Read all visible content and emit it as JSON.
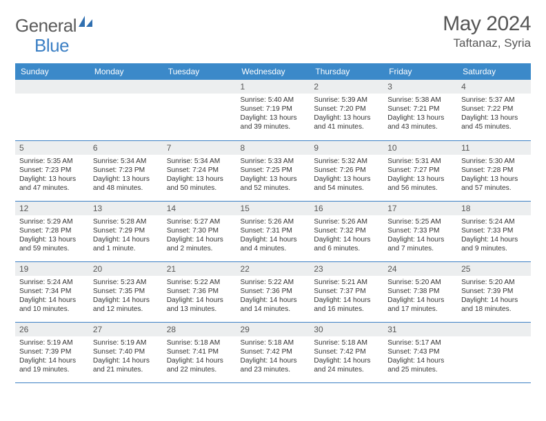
{
  "logo": {
    "text1": "General",
    "text2": "Blue"
  },
  "title": "May 2024",
  "location": "Taftanaz, Syria",
  "colors": {
    "header_bg": "#3b89c9",
    "daynum_bg": "#eceeef",
    "border": "#3b7fc4",
    "text": "#333333",
    "title_text": "#555555"
  },
  "dow": [
    "Sunday",
    "Monday",
    "Tuesday",
    "Wednesday",
    "Thursday",
    "Friday",
    "Saturday"
  ],
  "weeks": [
    [
      null,
      null,
      null,
      {
        "n": "1",
        "sr": "5:40 AM",
        "ss": "7:19 PM",
        "dl": "13 hours and 39 minutes."
      },
      {
        "n": "2",
        "sr": "5:39 AM",
        "ss": "7:20 PM",
        "dl": "13 hours and 41 minutes."
      },
      {
        "n": "3",
        "sr": "5:38 AM",
        "ss": "7:21 PM",
        "dl": "13 hours and 43 minutes."
      },
      {
        "n": "4",
        "sr": "5:37 AM",
        "ss": "7:22 PM",
        "dl": "13 hours and 45 minutes."
      }
    ],
    [
      {
        "n": "5",
        "sr": "5:35 AM",
        "ss": "7:23 PM",
        "dl": "13 hours and 47 minutes."
      },
      {
        "n": "6",
        "sr": "5:34 AM",
        "ss": "7:23 PM",
        "dl": "13 hours and 48 minutes."
      },
      {
        "n": "7",
        "sr": "5:34 AM",
        "ss": "7:24 PM",
        "dl": "13 hours and 50 minutes."
      },
      {
        "n": "8",
        "sr": "5:33 AM",
        "ss": "7:25 PM",
        "dl": "13 hours and 52 minutes."
      },
      {
        "n": "9",
        "sr": "5:32 AM",
        "ss": "7:26 PM",
        "dl": "13 hours and 54 minutes."
      },
      {
        "n": "10",
        "sr": "5:31 AM",
        "ss": "7:27 PM",
        "dl": "13 hours and 56 minutes."
      },
      {
        "n": "11",
        "sr": "5:30 AM",
        "ss": "7:28 PM",
        "dl": "13 hours and 57 minutes."
      }
    ],
    [
      {
        "n": "12",
        "sr": "5:29 AM",
        "ss": "7:28 PM",
        "dl": "13 hours and 59 minutes."
      },
      {
        "n": "13",
        "sr": "5:28 AM",
        "ss": "7:29 PM",
        "dl": "14 hours and 1 minute."
      },
      {
        "n": "14",
        "sr": "5:27 AM",
        "ss": "7:30 PM",
        "dl": "14 hours and 2 minutes."
      },
      {
        "n": "15",
        "sr": "5:26 AM",
        "ss": "7:31 PM",
        "dl": "14 hours and 4 minutes."
      },
      {
        "n": "16",
        "sr": "5:26 AM",
        "ss": "7:32 PM",
        "dl": "14 hours and 6 minutes."
      },
      {
        "n": "17",
        "sr": "5:25 AM",
        "ss": "7:33 PM",
        "dl": "14 hours and 7 minutes."
      },
      {
        "n": "18",
        "sr": "5:24 AM",
        "ss": "7:33 PM",
        "dl": "14 hours and 9 minutes."
      }
    ],
    [
      {
        "n": "19",
        "sr": "5:24 AM",
        "ss": "7:34 PM",
        "dl": "14 hours and 10 minutes."
      },
      {
        "n": "20",
        "sr": "5:23 AM",
        "ss": "7:35 PM",
        "dl": "14 hours and 12 minutes."
      },
      {
        "n": "21",
        "sr": "5:22 AM",
        "ss": "7:36 PM",
        "dl": "14 hours and 13 minutes."
      },
      {
        "n": "22",
        "sr": "5:22 AM",
        "ss": "7:36 PM",
        "dl": "14 hours and 14 minutes."
      },
      {
        "n": "23",
        "sr": "5:21 AM",
        "ss": "7:37 PM",
        "dl": "14 hours and 16 minutes."
      },
      {
        "n": "24",
        "sr": "5:20 AM",
        "ss": "7:38 PM",
        "dl": "14 hours and 17 minutes."
      },
      {
        "n": "25",
        "sr": "5:20 AM",
        "ss": "7:39 PM",
        "dl": "14 hours and 18 minutes."
      }
    ],
    [
      {
        "n": "26",
        "sr": "5:19 AM",
        "ss": "7:39 PM",
        "dl": "14 hours and 19 minutes."
      },
      {
        "n": "27",
        "sr": "5:19 AM",
        "ss": "7:40 PM",
        "dl": "14 hours and 21 minutes."
      },
      {
        "n": "28",
        "sr": "5:18 AM",
        "ss": "7:41 PM",
        "dl": "14 hours and 22 minutes."
      },
      {
        "n": "29",
        "sr": "5:18 AM",
        "ss": "7:42 PM",
        "dl": "14 hours and 23 minutes."
      },
      {
        "n": "30",
        "sr": "5:18 AM",
        "ss": "7:42 PM",
        "dl": "14 hours and 24 minutes."
      },
      {
        "n": "31",
        "sr": "5:17 AM",
        "ss": "7:43 PM",
        "dl": "14 hours and 25 minutes."
      },
      null
    ]
  ],
  "labels": {
    "sunrise": "Sunrise: ",
    "sunset": "Sunset: ",
    "daylight": "Daylight: "
  }
}
